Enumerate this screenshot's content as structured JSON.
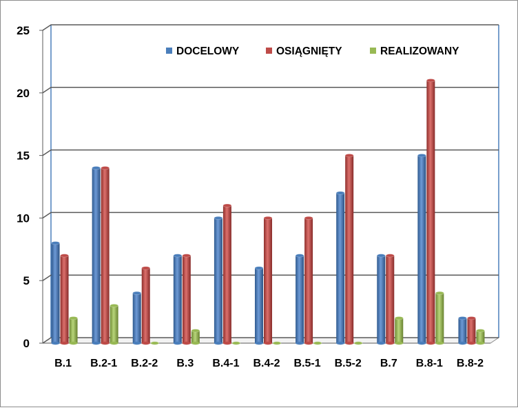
{
  "chart_data": {
    "type": "bar",
    "title": "",
    "xlabel": "",
    "ylabel": "",
    "categories": [
      "B.1",
      "B.2-1",
      "B.2-2",
      "B.3",
      "B.4-1",
      "B.4-2",
      "B.5-1",
      "B.5-2",
      "B.7",
      "B.8-1",
      "B.8-2"
    ],
    "series": [
      {
        "name": "DOCELOWY",
        "color": "#4a7ebb",
        "values": [
          8,
          14,
          4,
          7,
          10,
          6,
          7,
          12,
          7,
          15,
          2
        ]
      },
      {
        "name": "OSIĄGNIĘTY",
        "color": "#be4b48",
        "values": [
          7,
          14,
          6,
          7,
          11,
          10,
          10,
          15,
          7,
          21,
          2
        ]
      },
      {
        "name": "REALIZOWANY",
        "color": "#98b954",
        "values": [
          2,
          3,
          0,
          1,
          0,
          0,
          0,
          0,
          2,
          4,
          1
        ]
      }
    ],
    "ylim": [
      0,
      25
    ],
    "yticks": [
      0,
      5,
      10,
      15,
      20,
      25
    ],
    "grid": true,
    "legend": "top-right",
    "style": "3d-cylinder"
  }
}
